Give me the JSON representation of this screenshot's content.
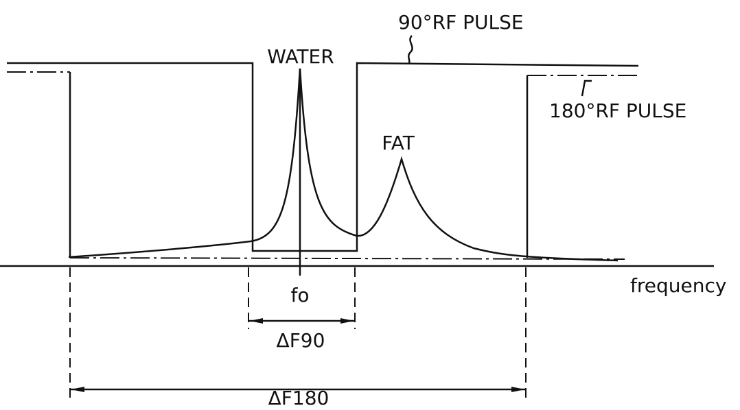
{
  "labels": {
    "pulse90": "90°RF PULSE",
    "pulse180": "180°RF PULSE",
    "water": "WATER",
    "fat": "FAT",
    "f0": "fo",
    "axis": "frequency",
    "df90": "ΔF90",
    "df180": "ΔF180"
  }
}
